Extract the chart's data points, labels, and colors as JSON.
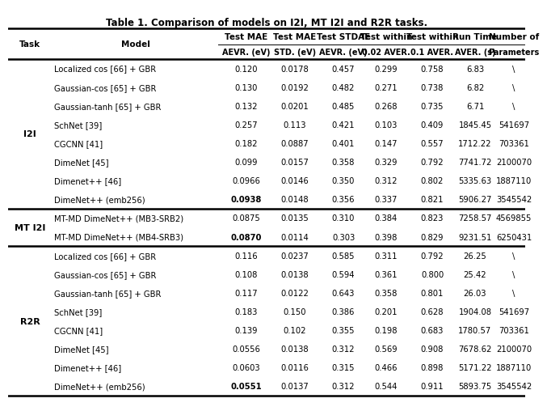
{
  "title": "Table 1. Comparison of models on I2I, MT I2I and R2R tasks.",
  "rows": [
    {
      "task": "I2I",
      "model": "Localized cos [66] + GBR",
      "vals": [
        "0.120",
        "0.0178",
        "0.457",
        "0.299",
        "0.758",
        "6.83",
        "\\"
      ],
      "bold_cols": []
    },
    {
      "task": "I2I",
      "model": "Gaussian-cos [65] + GBR",
      "vals": [
        "0.130",
        "0.0192",
        "0.482",
        "0.271",
        "0.738",
        "6.82",
        "\\"
      ],
      "bold_cols": []
    },
    {
      "task": "I2I",
      "model": "Gaussian-tanh [65] + GBR",
      "vals": [
        "0.132",
        "0.0201",
        "0.485",
        "0.268",
        "0.735",
        "6.71",
        "\\"
      ],
      "bold_cols": []
    },
    {
      "task": "I2I",
      "model": "SchNet [39]",
      "vals": [
        "0.257",
        "0.113",
        "0.421",
        "0.103",
        "0.409",
        "1845.45",
        "541697"
      ],
      "bold_cols": []
    },
    {
      "task": "I2I",
      "model": "CGCNN [41]",
      "vals": [
        "0.182",
        "0.0887",
        "0.401",
        "0.147",
        "0.557",
        "1712.22",
        "703361"
      ],
      "bold_cols": []
    },
    {
      "task": "I2I",
      "model": "DimeNet [45]",
      "vals": [
        "0.099",
        "0.0157",
        "0.358",
        "0.329",
        "0.792",
        "7741.72",
        "2100070"
      ],
      "bold_cols": []
    },
    {
      "task": "I2I",
      "model": "Dimenet++ [46]",
      "vals": [
        "0.0966",
        "0.0146",
        "0.350",
        "0.312",
        "0.802",
        "5335.63",
        "1887110"
      ],
      "bold_cols": []
    },
    {
      "task": "I2I",
      "model": "DimeNet++ (emb256)",
      "vals": [
        "0.0938",
        "0.0148",
        "0.356",
        "0.337",
        "0.821",
        "5906.27",
        "3545542"
      ],
      "bold_cols": [
        0
      ]
    },
    {
      "task": "MT I2I",
      "model": "MT-MD DimeNet++ (MB3-SRB2)",
      "vals": [
        "0.0875",
        "0.0135",
        "0.310",
        "0.384",
        "0.823",
        "7258.57",
        "4569855"
      ],
      "bold_cols": []
    },
    {
      "task": "MT I2I",
      "model": "MT-MD DimeNet++ (MB4-SRB3)",
      "vals": [
        "0.0870",
        "0.0114",
        "0.303",
        "0.398",
        "0.829",
        "9231.51",
        "6250431"
      ],
      "bold_cols": [
        0
      ]
    },
    {
      "task": "R2R",
      "model": "Localized cos [66] + GBR",
      "vals": [
        "0.116",
        "0.0237",
        "0.585",
        "0.311",
        "0.792",
        "26.25",
        "\\"
      ],
      "bold_cols": []
    },
    {
      "task": "R2R",
      "model": "Gaussian-cos [65] + GBR",
      "vals": [
        "0.108",
        "0.0138",
        "0.594",
        "0.361",
        "0.800",
        "25.42",
        "\\"
      ],
      "bold_cols": []
    },
    {
      "task": "R2R",
      "model": "Gaussian-tanh [65] + GBR",
      "vals": [
        "0.117",
        "0.0122",
        "0.643",
        "0.358",
        "0.801",
        "26.03",
        "\\"
      ],
      "bold_cols": []
    },
    {
      "task": "R2R",
      "model": "SchNet [39]",
      "vals": [
        "0.183",
        "0.150",
        "0.386",
        "0.201",
        "0.628",
        "1904.08",
        "541697"
      ],
      "bold_cols": []
    },
    {
      "task": "R2R",
      "model": "CGCNN [41]",
      "vals": [
        "0.139",
        "0.102",
        "0.355",
        "0.198",
        "0.683",
        "1780.57",
        "703361"
      ],
      "bold_cols": []
    },
    {
      "task": "R2R",
      "model": "DimeNet [45]",
      "vals": [
        "0.0556",
        "0.0138",
        "0.312",
        "0.569",
        "0.908",
        "7678.62",
        "2100070"
      ],
      "bold_cols": []
    },
    {
      "task": "R2R",
      "model": "Dimenet++ [46]",
      "vals": [
        "0.0603",
        "0.0116",
        "0.315",
        "0.466",
        "0.898",
        "5171.22",
        "1887110"
      ],
      "bold_cols": []
    },
    {
      "task": "R2R",
      "model": "DimeNet++ (emb256)",
      "vals": [
        "0.0551",
        "0.0137",
        "0.312",
        "0.544",
        "0.911",
        "5893.75",
        "3545542"
      ],
      "bold_cols": [
        0
      ]
    }
  ],
  "task_spans": {
    "I2I": [
      0,
      7
    ],
    "MT I2I": [
      8,
      9
    ],
    "R2R": [
      10,
      17
    ]
  },
  "header_top": [
    "Test MAE",
    "Test MAE",
    "Test STDAE",
    "Test within",
    "Test within",
    "Run Time",
    "Number of"
  ],
  "header_bot": [
    "AEVR. (eV)",
    "STD. (eV)",
    "AEVR. (eV)",
    "0.02 AVER.",
    "0.1 AVER.",
    "AVER. (s)",
    "Parameters"
  ],
  "thick_boundary_rows": [
    8,
    10
  ],
  "bg_color": "#ffffff",
  "text_color": "#000000",
  "title_fontsize": 8.5,
  "header_fontsize": 7.5,
  "cell_fontsize": 7.2,
  "task_fontsize": 8.0
}
